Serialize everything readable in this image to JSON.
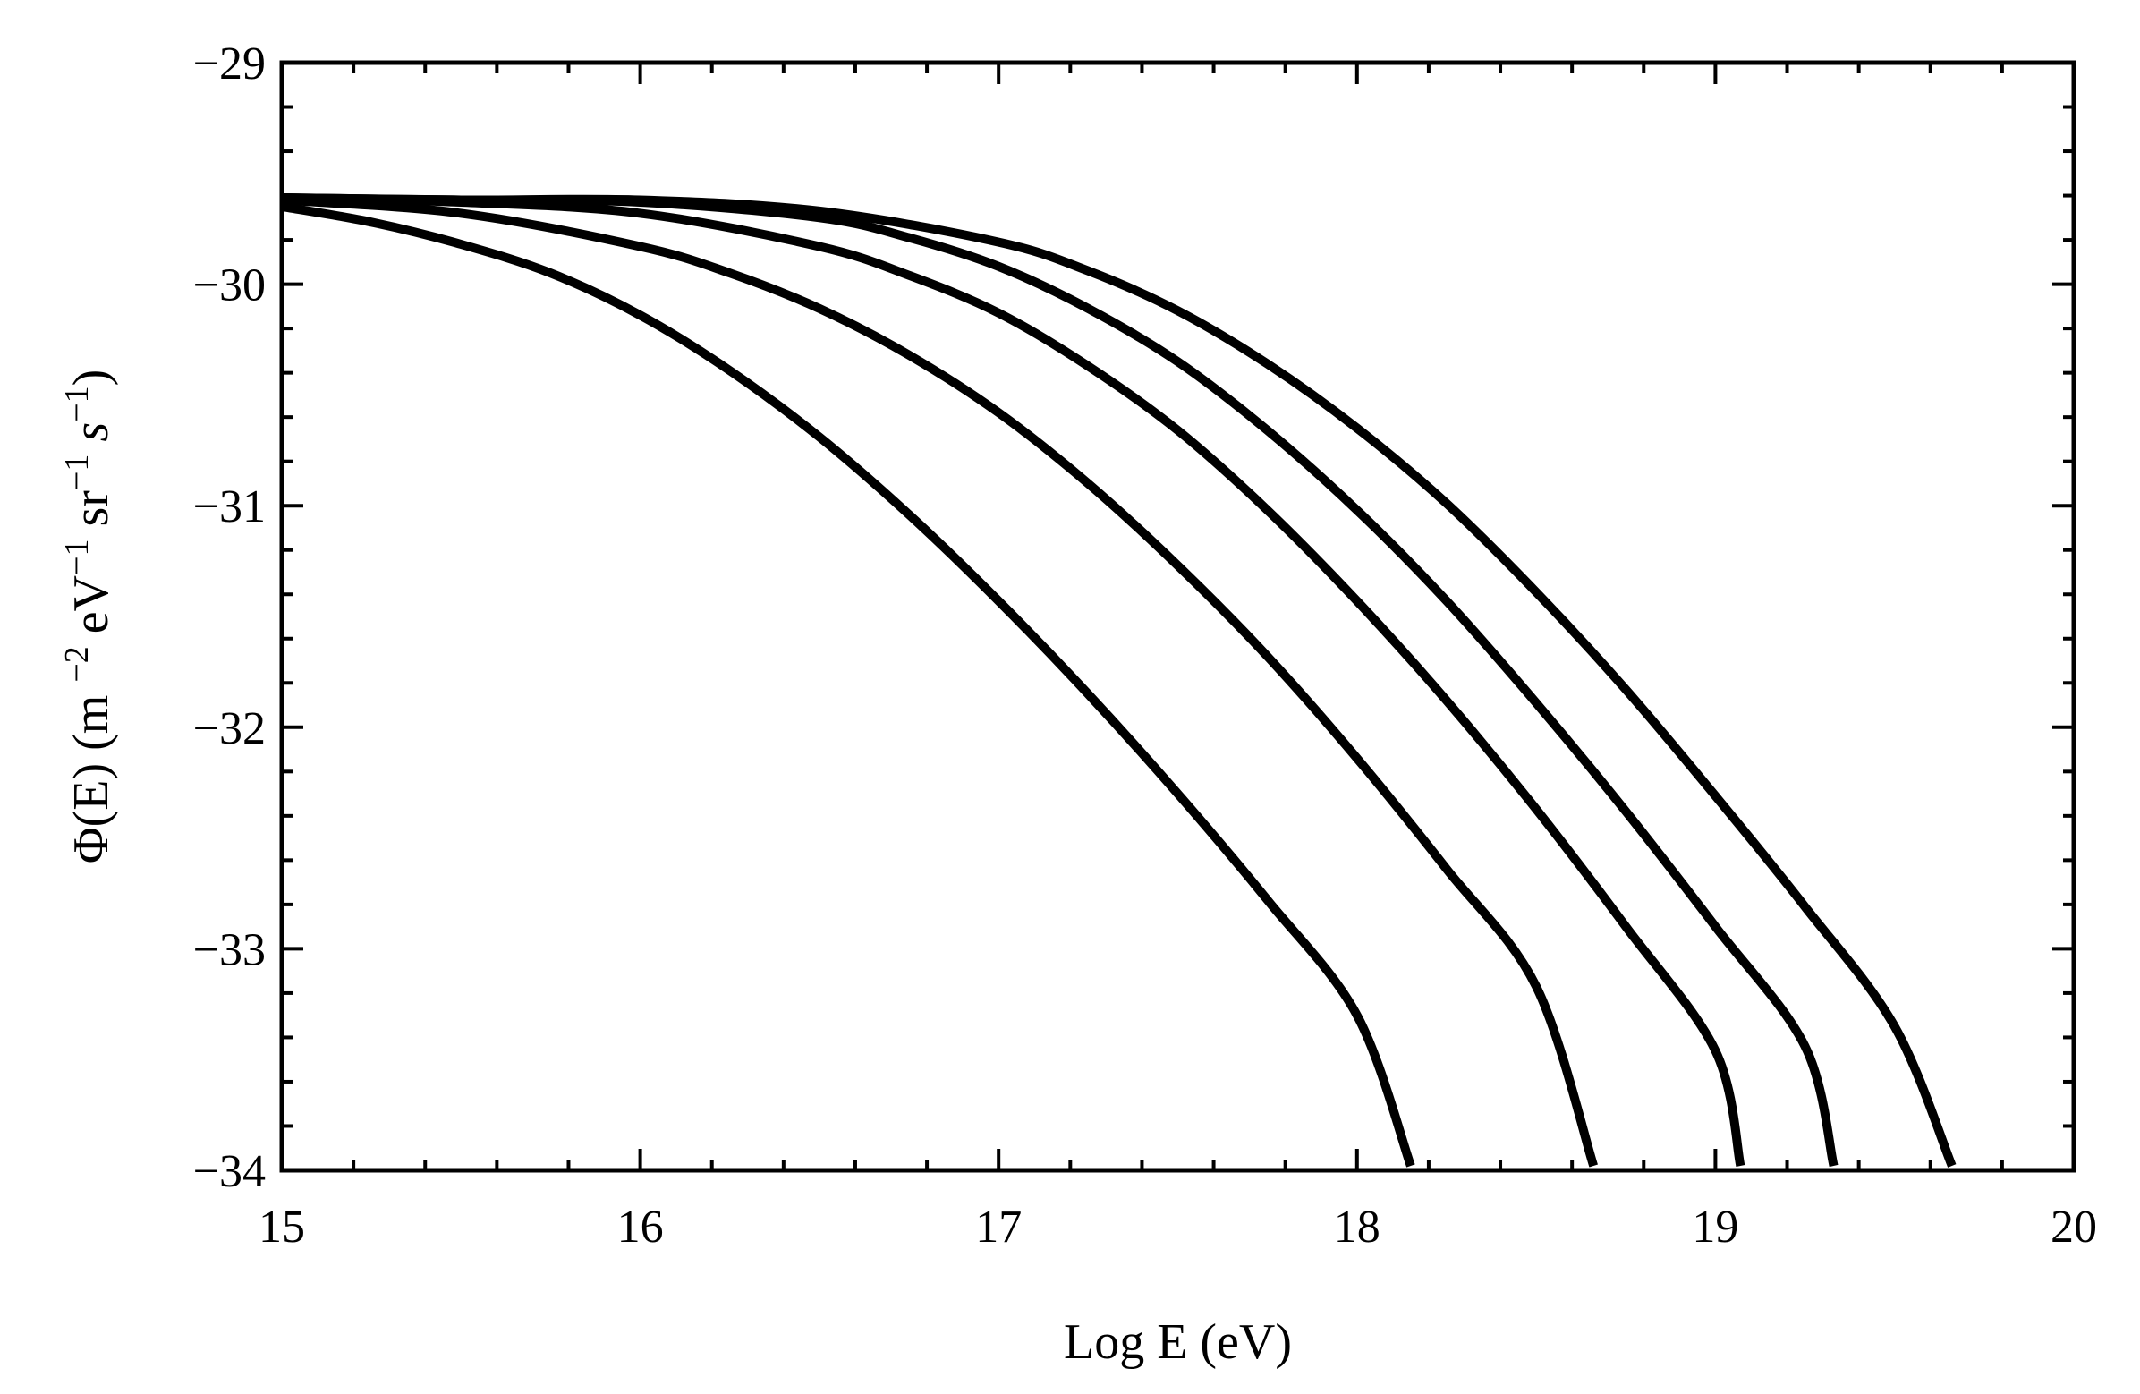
{
  "chart_data": {
    "type": "line",
    "title": "",
    "xlabel": "Log E (eV)",
    "ylabel": {
      "text": "Φ(E) (m −2 eV−1 sr−1 s−1)",
      "parts": [
        "Φ(E) (m ",
        "−2",
        " eV",
        "−1",
        " sr",
        "−1",
        " ",
        "s",
        "−1",
        ")"
      ]
    },
    "xlim": [
      15,
      20
    ],
    "ylim": [
      -34,
      -29
    ],
    "x_ticks": [
      15,
      16,
      17,
      18,
      19,
      20
    ],
    "x_tick_labels": [
      "15",
      "16",
      "17",
      "18",
      "19",
      "20"
    ],
    "y_ticks": [
      -29,
      -30,
      -31,
      -32,
      -33,
      -34
    ],
    "y_tick_labels": [
      "−29",
      "−30",
      "−31",
      "−32",
      "−33",
      "−34"
    ],
    "grid": false,
    "legend": "none",
    "line_color": "#000000",
    "series": [
      {
        "x": [
          15.0,
          15.25,
          15.5,
          15.75,
          16.0,
          16.25,
          16.5,
          16.75,
          17.0,
          17.25,
          17.5,
          17.75,
          18.0,
          18.15
        ],
        "y": [
          -29.65,
          -29.72,
          -29.82,
          -29.95,
          -30.14,
          -30.39,
          -30.69,
          -31.04,
          -31.43,
          -31.85,
          -32.3,
          -32.78,
          -33.3,
          -33.98
        ]
      },
      {
        "x": [
          15.0,
          15.5,
          16.0,
          16.25,
          16.5,
          16.75,
          17.0,
          17.25,
          17.5,
          17.75,
          18.0,
          18.25,
          18.5,
          18.66
        ],
        "y": [
          -29.62,
          -29.68,
          -29.83,
          -29.95,
          -30.11,
          -30.32,
          -30.58,
          -30.9,
          -31.27,
          -31.68,
          -32.14,
          -32.64,
          -33.17,
          -33.98
        ]
      },
      {
        "x": [
          15.0,
          15.5,
          16.0,
          16.5,
          16.75,
          17.0,
          17.25,
          17.5,
          17.75,
          18.0,
          18.25,
          18.5,
          18.75,
          19.0,
          19.07
        ],
        "y": [
          -29.61,
          -29.63,
          -29.68,
          -29.83,
          -29.96,
          -30.13,
          -30.37,
          -30.66,
          -31.02,
          -31.43,
          -31.88,
          -32.37,
          -32.9,
          -33.46,
          -33.98
        ]
      },
      {
        "x": [
          15.0,
          15.5,
          16.0,
          16.5,
          16.75,
          17.0,
          17.25,
          17.5,
          17.75,
          18.0,
          18.25,
          18.5,
          18.75,
          19.0,
          19.25,
          19.33
        ],
        "y": [
          -29.61,
          -29.62,
          -29.63,
          -29.7,
          -29.79,
          -29.92,
          -30.11,
          -30.35,
          -30.66,
          -31.02,
          -31.43,
          -31.89,
          -32.38,
          -32.9,
          -33.44,
          -33.98
        ]
      },
      {
        "x": [
          15.0,
          15.5,
          16.0,
          16.5,
          17.0,
          17.25,
          17.5,
          17.75,
          18.0,
          18.25,
          18.5,
          18.75,
          19.0,
          19.25,
          19.5,
          19.66
        ],
        "y": [
          -29.61,
          -29.62,
          -29.62,
          -29.67,
          -29.81,
          -29.94,
          -30.12,
          -30.36,
          -30.65,
          -30.99,
          -31.39,
          -31.83,
          -32.31,
          -32.81,
          -33.35,
          -33.98
        ]
      }
    ]
  }
}
